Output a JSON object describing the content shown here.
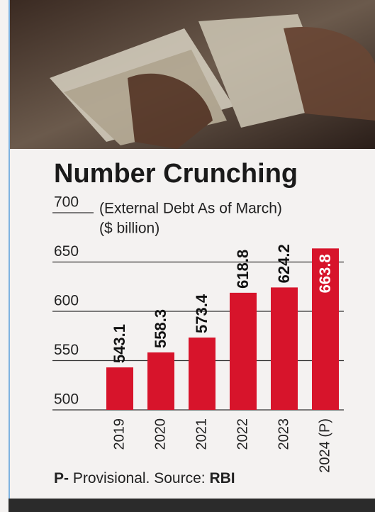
{
  "chart_data": {
    "type": "bar",
    "title": "Number Crunching",
    "subtitle": "(External Debt As of March)",
    "unit_label": "($ billion)",
    "categories": [
      "2019",
      "2020",
      "2021",
      "2022",
      "2023",
      "2024 (P)"
    ],
    "values": [
      543.1,
      558.3,
      573.4,
      618.8,
      624.2,
      663.8
    ],
    "color": "#d7142b",
    "ylim": [
      500,
      700
    ],
    "yticks": [
      500,
      550,
      600,
      650,
      700
    ],
    "grid": true,
    "footnote": {
      "prefix": "P-",
      "text": " Provisional. Source: ",
      "source": "RBI"
    }
  }
}
